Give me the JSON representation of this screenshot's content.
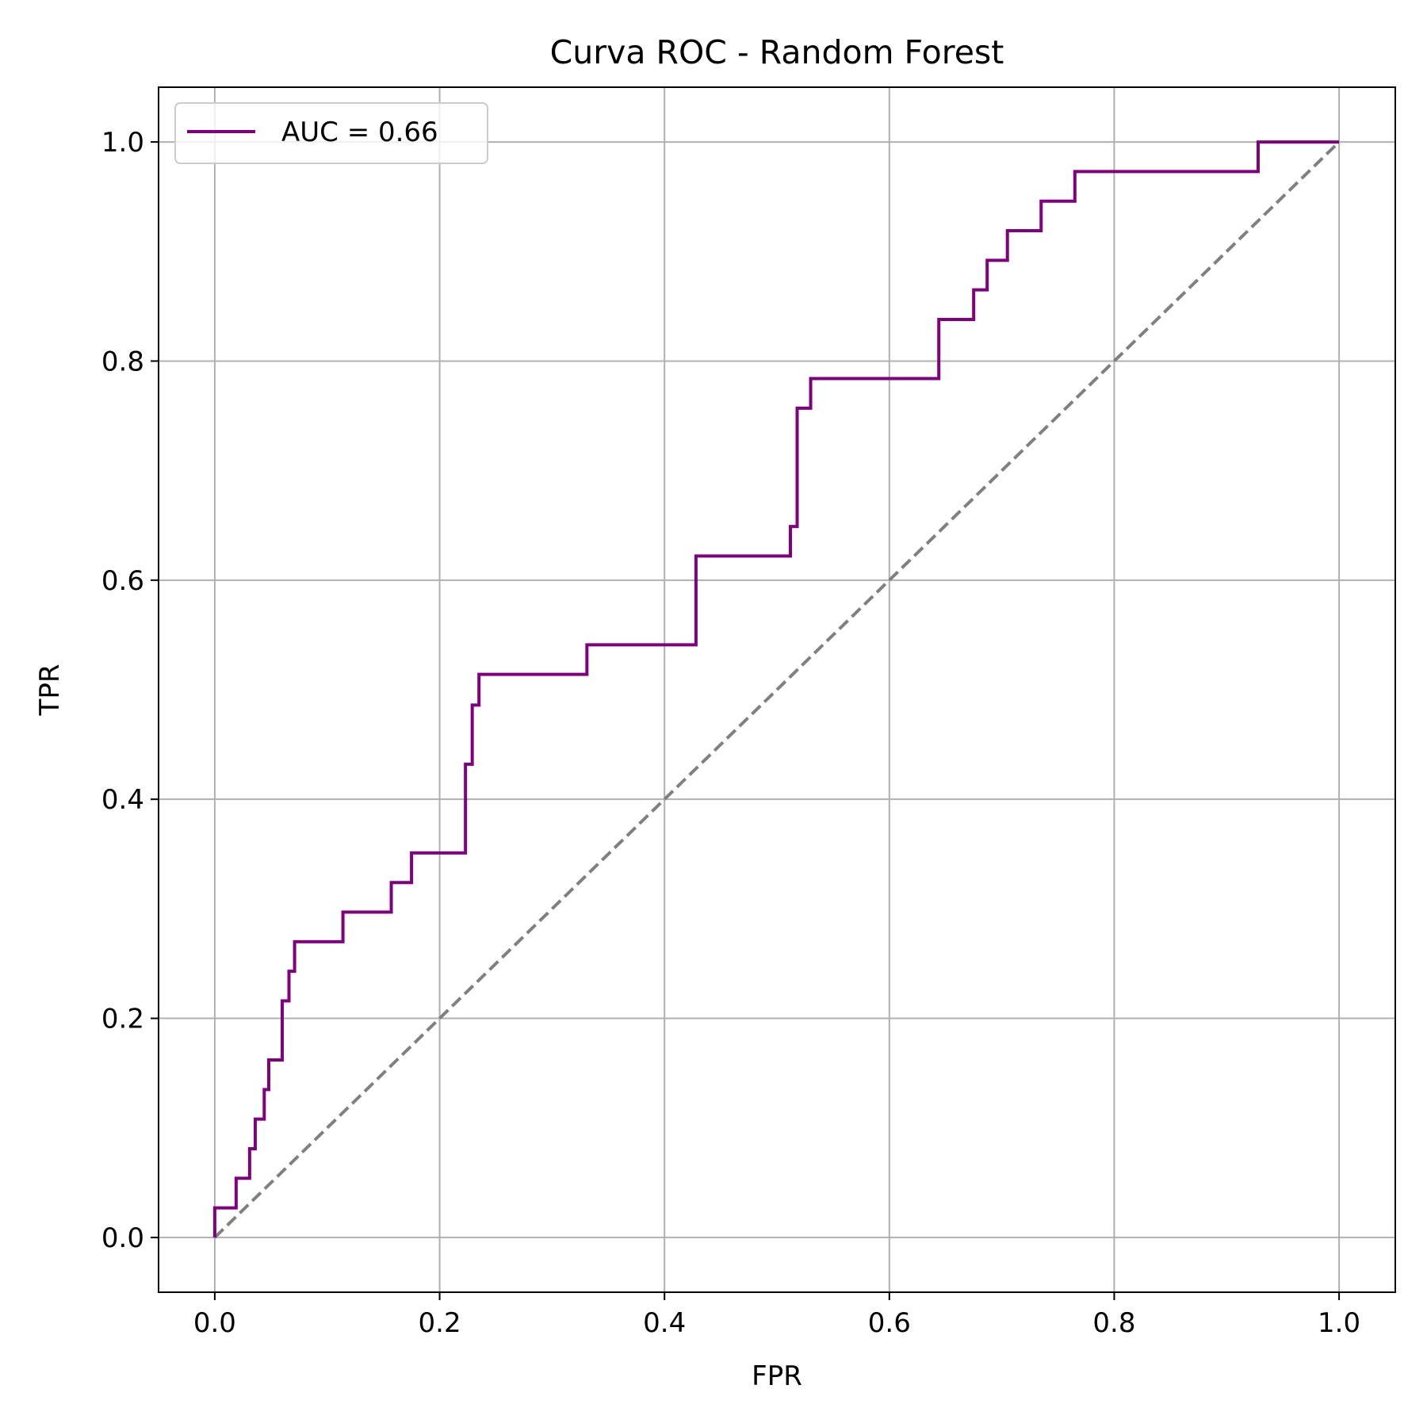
{
  "chart_data": {
    "type": "line",
    "title": "Curva ROC - Random Forest",
    "xlabel": "FPR",
    "ylabel": "TPR",
    "xlim": [
      -0.05,
      1.05
    ],
    "ylim": [
      -0.05,
      1.05
    ],
    "xticks": [
      "0.0",
      "0.2",
      "0.4",
      "0.6",
      "0.8",
      "1.0"
    ],
    "yticks": [
      "0.0",
      "0.2",
      "0.4",
      "0.6",
      "0.8",
      "1.0"
    ],
    "grid": true,
    "legend_position": "top-left",
    "series": [
      {
        "name": "AUC = 0.66",
        "color": "#800080",
        "style": "step",
        "x": [
          0.0,
          0.0,
          0.019,
          0.019,
          0.031,
          0.031,
          0.036,
          0.036,
          0.044,
          0.044,
          0.048,
          0.048,
          0.06,
          0.06,
          0.066,
          0.066,
          0.071,
          0.071,
          0.114,
          0.114,
          0.157,
          0.157,
          0.175,
          0.175,
          0.223,
          0.223,
          0.229,
          0.229,
          0.235,
          0.235,
          0.331,
          0.331,
          0.428,
          0.428,
          0.512,
          0.512,
          0.518,
          0.518,
          0.53,
          0.53,
          0.644,
          0.644,
          0.675,
          0.675,
          0.687,
          0.687,
          0.705,
          0.705,
          0.735,
          0.735,
          0.765,
          0.765,
          0.928,
          0.928,
          1.0
        ],
        "y": [
          0.0,
          0.027,
          0.027,
          0.054,
          0.054,
          0.081,
          0.081,
          0.108,
          0.108,
          0.135,
          0.135,
          0.162,
          0.162,
          0.216,
          0.216,
          0.243,
          0.243,
          0.27,
          0.27,
          0.297,
          0.297,
          0.324,
          0.324,
          0.351,
          0.351,
          0.432,
          0.432,
          0.486,
          0.486,
          0.514,
          0.514,
          0.541,
          0.541,
          0.622,
          0.622,
          0.649,
          0.649,
          0.757,
          0.757,
          0.784,
          0.784,
          0.838,
          0.838,
          0.865,
          0.865,
          0.892,
          0.892,
          0.919,
          0.919,
          0.946,
          0.946,
          0.973,
          0.973,
          1.0,
          1.0
        ]
      },
      {
        "color": "#808080",
        "style": "dashed",
        "x": [
          0.0,
          1.0
        ],
        "y": [
          0.0,
          1.0
        ]
      }
    ],
    "legend": [
      "AUC = 0.66"
    ]
  }
}
